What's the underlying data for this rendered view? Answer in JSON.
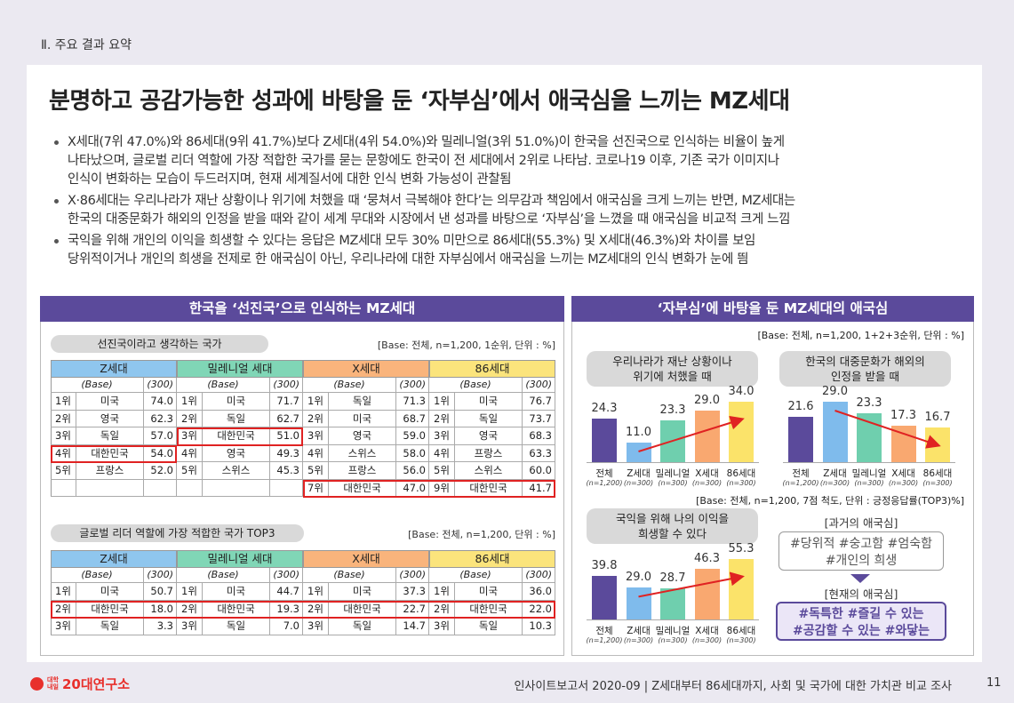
{
  "header": {
    "section": "Ⅱ. 주요 결과 요약",
    "title": "분명하고 공감가능한 성과에 바탕을 둔 ‘자부심’에서 애국심을 느끼는 MZ세대"
  },
  "bullets": [
    [
      "X세대(7위 47.0%)와 86세대(9위 41.7%)보다 Z세대(4위 54.0%)와 밀레니얼(3위 51.0%)이 한국을 선진국으로 인식하는 비율이 높게",
      "나타났으며, 글로벌 리더 역할에 가장 적합한 국가를 묻는 문항에도 한국이 전 세대에서 2위로 나타남. 코로나19 이후, 기존 국가 이미지나",
      "인식이 변화하는 모습이 두드러지며, 현재 세계질서에 대한 인식 변화 가능성이 관찰됨"
    ],
    [
      "X·86세대는 우리나라가 재난 상황이나 위기에 처했을 때 ‘뭉쳐서 극복해야 한다’는 의무감과 책임에서 애국심을 크게 느끼는 반면, MZ세대는",
      "한국의 대중문화가 해외의 인정을 받을 때와 같이 세계 무대와 시장에서 낸 성과를 바탕으로 ‘자부심’을 느꼈을 때 애국심을 비교적 크게 느낌"
    ],
    [
      "국익을 위해 개인의 이익을 희생할 수 있다는 응답은 MZ세대 모두 30% 미만으로 86세대(55.3%) 및 X세대(46.3%)와 차이를 보임",
      "당위적이거나 개인의 희생을 전제로 한 애국심이 아닌, 우리나라에 대한 자부심에서 애국심을 느끼는 MZ세대의 인식 변화가 눈에 띔"
    ]
  ],
  "left_panel": {
    "title": "한국을 ‘선진국’으로 인식하는 MZ세대",
    "tables": [
      {
        "label": "선진국이라고 생각하는 국가",
        "base": "[Base: 전체, n=1,200, 1순위, 단위 : %]",
        "groups": [
          {
            "name": "Z세대",
            "color": "#8fc6ee",
            "base_label": "(Base)",
            "base_n": "(300)",
            "rows": [
              [
                "1위",
                "미국",
                "74.0"
              ],
              [
                "2위",
                "영국",
                "62.3"
              ],
              [
                "3위",
                "독일",
                "57.0"
              ],
              [
                "4위",
                "대한민국",
                "54.0"
              ],
              [
                "5위",
                "프랑스",
                "52.0"
              ]
            ]
          },
          {
            "name": "밀레니얼 세대",
            "color": "#80d6b6",
            "base_label": "(Base)",
            "base_n": "(300)",
            "rows": [
              [
                "1위",
                "미국",
                "71.7"
              ],
              [
                "2위",
                "독일",
                "62.7"
              ],
              [
                "3위",
                "대한민국",
                "51.0"
              ],
              [
                "4위",
                "영국",
                "49.3"
              ],
              [
                "5위",
                "스위스",
                "45.3"
              ]
            ]
          },
          {
            "name": "X세대",
            "color": "#f9b47c",
            "base_label": "(Base)",
            "base_n": "(300)",
            "rows": [
              [
                "1위",
                "독일",
                "71.3"
              ],
              [
                "2위",
                "미국",
                "68.7"
              ],
              [
                "3위",
                "영국",
                "59.0"
              ],
              [
                "4위",
                "스위스",
                "58.0"
              ],
              [
                "5위",
                "프랑스",
                "56.0"
              ],
              [
                "7위",
                "대한민국",
                "47.0"
              ]
            ]
          },
          {
            "name": "86세대",
            "color": "#fbe47c",
            "base_label": "(Base)",
            "base_n": "(300)",
            "rows": [
              [
                "1위",
                "미국",
                "76.7"
              ],
              [
                "2위",
                "독일",
                "73.7"
              ],
              [
                "3위",
                "영국",
                "68.3"
              ],
              [
                "4위",
                "프랑스",
                "63.3"
              ],
              [
                "5위",
                "스위스",
                "60.0"
              ],
              [
                "9위",
                "대한민국",
                "41.7"
              ]
            ]
          }
        ]
      },
      {
        "label": "글로벌 리더 역할에 가장 적합한 국가  TOP3",
        "base": "[Base: 전체, n=1,200, 단위 : %]",
        "groups": [
          {
            "name": "Z세대",
            "color": "#8fc6ee",
            "base_label": "(Base)",
            "base_n": "(300)",
            "rows": [
              [
                "1위",
                "미국",
                "50.7"
              ],
              [
                "2위",
                "대한민국",
                "18.0"
              ],
              [
                "3위",
                "독일",
                "3.3"
              ]
            ]
          },
          {
            "name": "밀레니얼 세대",
            "color": "#80d6b6",
            "base_label": "(Base)",
            "base_n": "(300)",
            "rows": [
              [
                "1위",
                "미국",
                "44.7"
              ],
              [
                "2위",
                "대한민국",
                "19.3"
              ],
              [
                "3위",
                "독일",
                "7.0"
              ]
            ]
          },
          {
            "name": "X세대",
            "color": "#f9b47c",
            "base_label": "(Base)",
            "base_n": "(300)",
            "rows": [
              [
                "1위",
                "미국",
                "37.3"
              ],
              [
                "2위",
                "대한민국",
                "22.7"
              ],
              [
                "3위",
                "독일",
                "14.7"
              ]
            ]
          },
          {
            "name": "86세대",
            "color": "#fbe47c",
            "base_label": "(Base)",
            "base_n": "(300)",
            "rows": [
              [
                "1위",
                "미국",
                "36.0"
              ],
              [
                "2위",
                "대한민국",
                "22.0"
              ],
              [
                "3위",
                "독일",
                "10.3"
              ]
            ]
          }
        ]
      }
    ]
  },
  "right_panel": {
    "title": "‘자부심’에 바탕을 둔 MZ세대의 애국심",
    "base": "[Base: 전체, n=1,200, 1+2+3순위, 단위 : %]",
    "base2": "[Base: 전체, n=1,200, 7점 척도, 단위 : 긍정응답률(TOP3)%]",
    "charts": [
      {
        "type": "bar",
        "title": [
          "우리나라가 재난 상황이나",
          "위기에 처했을 때"
        ],
        "categories": [
          "전체",
          "Z세대",
          "밀레니얼",
          "X세대",
          "86세대"
        ],
        "category_notes": [
          "(n=1,200)",
          "(n=300)",
          "(n=300)",
          "(n=300)",
          "(n=300)"
        ],
        "values": [
          24.3,
          11,
          23.3,
          29,
          34
        ],
        "value_labels": [
          "24.3",
          "11.0",
          "23.3",
          "29.0",
          "34.0"
        ],
        "colors": [
          "#5b4a9b",
          "#7fbbec",
          "#6fcfae",
          "#f9a870",
          "#fbe36a"
        ]
      },
      {
        "type": "bar",
        "title": [
          "한국의 대중문화가 해외의",
          "인정을 받을 때"
        ],
        "categories": [
          "전체",
          "Z세대",
          "밀레니얼",
          "X세대",
          "86세대"
        ],
        "category_notes": [
          "(n=1,200)",
          "(n=300)",
          "(n=300)",
          "(n=300)",
          "(n=300)"
        ],
        "values": [
          21.6,
          29,
          23.3,
          17.3,
          16.7
        ],
        "value_labels": [
          "21.6",
          "29.0",
          "23.3",
          "17.3",
          "16.7"
        ],
        "colors": [
          "#5b4a9b",
          "#7fbbec",
          "#6fcfae",
          "#f9a870",
          "#fbe36a"
        ]
      },
      {
        "type": "bar",
        "title": [
          "국익을 위해 나의 이익을",
          "희생할 수 있다"
        ],
        "categories": [
          "전체",
          "Z세대",
          "밀레니얼",
          "X세대",
          "86세대"
        ],
        "category_notes": [
          "(n=1,200)",
          "(n=300)",
          "(n=300)",
          "(n=300)",
          "(n=300)"
        ],
        "values": [
          39.8,
          29,
          28.7,
          46.3,
          55.3
        ],
        "value_labels": [
          "39.8",
          "29.0",
          "28.7",
          "46.3",
          "55.3"
        ],
        "colors": [
          "#5b4a9b",
          "#7fbbec",
          "#6fcfae",
          "#f9a870",
          "#fbe36a"
        ]
      }
    ],
    "past": {
      "label": "[과거의 애국심]",
      "tags": [
        "#당위적 #숭고함 #엄숙함",
        "#개인의 희생"
      ]
    },
    "present": {
      "label": "[현재의 애국심]",
      "tags": [
        "#독특한 #즐길 수 있는",
        "#공감할 수 있는 #와닿는"
      ]
    }
  },
  "footer": {
    "logo_small": [
      "대학",
      "내일"
    ],
    "logo": "20대연구소",
    "text": "인사이트보고서 2020-09 | Z세대부터 86세대까지, 사회 및 국가에 대한 가치관 비교 조사",
    "page": "11"
  }
}
